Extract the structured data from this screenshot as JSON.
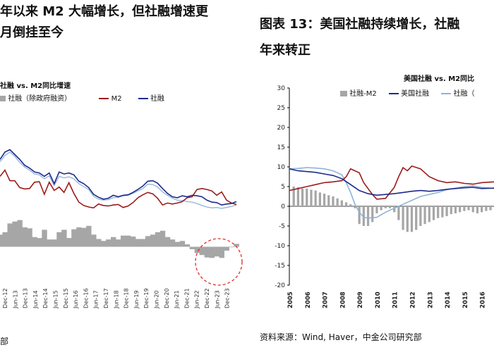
{
  "left": {
    "title_line1": "年以来 M2 大幅增长，但社融增速更",
    "title_line2": "月倒挂至今",
    "subtitle": "社融 vs. M2同比增速",
    "legend": [
      {
        "label": "社融（除政府融资）",
        "color": "#a6a6a6",
        "kind": "bar"
      },
      {
        "label": "M2",
        "color": "#9b1c1c",
        "kind": "line"
      },
      {
        "label": "社融",
        "color": "#1e2a8a",
        "kind": "line"
      }
    ],
    "source": "部",
    "chart_data": {
      "type": "line",
      "x_ticks": [
        "Dec-12",
        "Jun-13",
        "Dec-13",
        "Jun-14",
        "Dec-14",
        "Jun-15",
        "Dec-15",
        "Jun-16",
        "Dec-16",
        "Jun-17",
        "Dec-17",
        "Jun-18",
        "Dec-18",
        "Jun-19",
        "Dec-19",
        "Jun-20",
        "Dec-20",
        "Jun-21",
        "Dec-21",
        "Jun-22",
        "Dec-22",
        "Jun-23",
        "Dec-23"
      ],
      "series": [
        {
          "name": "M2",
          "color": "#9b1c1c",
          "values": [
            14.5,
            15.8,
            13.6,
            13.6,
            12.2,
            11.9,
            12.0,
            13.3,
            13.4,
            10.8,
            13.3,
            11.6,
            12.3,
            11.2,
            13.2,
            11.0,
            9.2,
            8.5,
            8.2,
            8.0,
            8.8,
            8.5,
            8.4,
            8.6,
            8.7,
            8.1,
            8.4,
            9.1,
            10.1,
            10.7,
            11.2,
            10.9,
            10.0,
            8.6,
            9.0,
            8.8,
            9.0,
            9.3,
            10.1,
            10.3,
            11.8,
            12.0,
            11.8,
            11.5,
            10.6,
            11.3,
            9.6,
            9.0,
            8.7
          ]
        },
        {
          "name": "社融",
          "color": "#1e2a8a",
          "values": [
            18.0,
            19.5,
            20.0,
            19.0,
            18.0,
            16.8,
            16.2,
            15.4,
            15.2,
            14.5,
            15.2,
            13.0,
            15.4,
            15.0,
            15.2,
            14.8,
            13.5,
            13.0,
            12.2,
            10.8,
            10.2,
            9.8,
            10.0,
            10.6,
            10.3,
            10.6,
            10.7,
            11.2,
            11.8,
            12.5,
            13.5,
            13.6,
            13.1,
            12.0,
            11.0,
            10.3,
            10.1,
            10.5,
            10.3,
            10.6,
            10.5,
            10.3,
            9.6,
            9.2,
            9.1,
            8.6,
            8.8,
            8.9,
            9.3
          ]
        },
        {
          "name": "社融（除政府融资）",
          "color": "#8fb3d9",
          "values": [
            17.5,
            18.8,
            19.5,
            18.6,
            17.4,
            16.4,
            15.8,
            15.0,
            14.8,
            14.0,
            14.6,
            12.6,
            14.5,
            14.2,
            14.4,
            14.0,
            13.0,
            12.4,
            11.8,
            10.4,
            9.8,
            9.6,
            9.7,
            10.1,
            10.2,
            10.5,
            10.6,
            11.0,
            11.5,
            12.0,
            12.9,
            12.8,
            12.3,
            11.3,
            10.6,
            10.0,
            9.6,
            9.5,
            9.3,
            9.2,
            8.9,
            8.5,
            8.2,
            8.0,
            8.1,
            7.9,
            8.1,
            8.3,
            8.6
          ]
        }
      ],
      "bars": {
        "name": "社融（除政府融资）",
        "values": [
          2.5,
          3.0,
          4.8,
          5.2,
          5.5,
          4.0,
          3.8,
          2.0,
          1.8,
          3.5,
          1.5,
          1.5,
          3.0,
          3.5,
          1.8,
          3.6,
          4.0,
          3.9,
          4.3,
          2.5,
          1.6,
          1.2,
          1.5,
          2.0,
          1.5,
          2.3,
          2.3,
          2.1,
          1.6,
          1.6,
          2.2,
          2.5,
          3.0,
          3.3,
          2.0,
          1.5,
          1.0,
          1.2,
          0.5,
          -0.5,
          -1.3,
          -1.7,
          -2.2,
          -2.3,
          -2.0,
          -2.3,
          -0.8,
          -0.1,
          0.6
        ]
      },
      "ylim": [
        -5,
        24
      ]
    }
  },
  "right": {
    "title_line1": "图表 13：美国社融持续增长，社融",
    "title_line2": "年来转正",
    "subtitle": "美国社融 vs. M2同比",
    "legend": [
      {
        "label": "社融-M2",
        "color": "#a6a6a6",
        "kind": "bar"
      },
      {
        "label": "美国社融",
        "color": "#1e2a8a",
        "kind": "line"
      },
      {
        "label": "社融（",
        "color": "#8fb3d9",
        "kind": "line"
      }
    ],
    "source": "资料来源：Wind, Haver，中金公司研究部",
    "chart_data": {
      "type": "line",
      "x_ticks": [
        "2005",
        "2006",
        "2007",
        "2008",
        "2009",
        "2010",
        "2011",
        "2012",
        "2013",
        "2014",
        "2015",
        "2016"
      ],
      "y_ticks": [
        30,
        25,
        20,
        15,
        10,
        5,
        0,
        -5,
        -10,
        -15,
        -20
      ],
      "ylim": [
        -20,
        30
      ],
      "xlim": [
        2005,
        2016.7
      ],
      "series": [
        {
          "name": "M2",
          "color": "#9b1c1c",
          "x": [
            2005,
            2005.5,
            2006,
            2006.5,
            2007,
            2007.5,
            2008,
            2008.25,
            2008.5,
            2008.75,
            2009,
            2009.25,
            2009.5,
            2009.75,
            2010,
            2010.5,
            2011,
            2011.25,
            2011.5,
            2011.75,
            2012,
            2012.5,
            2013,
            2013.5,
            2014,
            2014.5,
            2015,
            2015.5,
            2016,
            2016.7
          ],
          "values": [
            4.0,
            4.5,
            5.0,
            5.5,
            6.0,
            6.2,
            6.5,
            7.5,
            9.5,
            9.0,
            8.5,
            6.0,
            4.5,
            3.0,
            1.8,
            2.0,
            4.8,
            7.5,
            9.8,
            9.0,
            10.2,
            9.5,
            7.5,
            6.5,
            6.0,
            6.2,
            5.8,
            5.6,
            6.0,
            6.2
          ]
        },
        {
          "name": "美国社融",
          "color": "#1e2a8a",
          "x": [
            2005,
            2005.5,
            2006,
            2006.5,
            2007,
            2007.5,
            2008,
            2008.5,
            2009,
            2009.5,
            2010,
            2010.5,
            2011,
            2011.5,
            2012,
            2012.5,
            2013,
            2013.5,
            2014,
            2014.5,
            2015,
            2015.5,
            2016,
            2016.7
          ],
          "values": [
            9.5,
            9.0,
            8.8,
            8.6,
            8.2,
            7.8,
            7.0,
            5.5,
            4.0,
            3.2,
            2.8,
            3.0,
            3.2,
            3.5,
            3.8,
            4.0,
            3.8,
            4.0,
            4.3,
            4.5,
            4.7,
            4.8,
            4.5,
            4.6
          ]
        },
        {
          "name": "社融（",
          "color": "#8fb3d9",
          "x": [
            2005,
            2005.5,
            2006,
            2006.5,
            2007,
            2007.5,
            2008,
            2008.25,
            2008.5,
            2008.75,
            2009,
            2009.25,
            2009.5,
            2010,
            2010.5,
            2011,
            2011.5,
            2012,
            2012.5,
            2013,
            2013.5,
            2014,
            2014.5,
            2015,
            2015.5,
            2016,
            2016.7
          ],
          "values": [
            9.5,
            9.6,
            9.8,
            9.7,
            9.5,
            9.0,
            8.0,
            6.0,
            3.5,
            0.5,
            -1.5,
            -2.8,
            -3.0,
            -2.8,
            -1.5,
            -0.5,
            0.5,
            1.5,
            2.5,
            3.0,
            3.5,
            4.2,
            4.6,
            5.0,
            5.2,
            4.8,
            4.5
          ]
        }
      ],
      "bars": {
        "name": "社融-M2",
        "x": [
          2005.25,
          2005.5,
          2005.75,
          2006,
          2006.25,
          2006.5,
          2006.75,
          2007,
          2007.25,
          2007.5,
          2007.75,
          2008,
          2008.25,
          2008.5,
          2008.75,
          2009,
          2009.25,
          2009.5,
          2009.75,
          2010,
          2010.25,
          2010.5,
          2010.75,
          2011,
          2011.25,
          2011.5,
          2011.75,
          2012,
          2012.25,
          2012.5,
          2012.75,
          2013,
          2013.25,
          2013.5,
          2013.75,
          2014,
          2014.25,
          2014.5,
          2014.75,
          2015,
          2015.25,
          2015.5,
          2015.75,
          2016,
          2016.25,
          2016.5
        ],
        "values": [
          5.0,
          4.8,
          4.5,
          4.5,
          4.2,
          4.0,
          3.5,
          3.2,
          2.8,
          2.5,
          2.0,
          1.5,
          1.0,
          0.5,
          -0.5,
          -4.5,
          -5.0,
          -5.0,
          -4.0,
          -1.8,
          -1.0,
          -0.5,
          -0.5,
          -1.5,
          -3.5,
          -6.0,
          -6.5,
          -6.5,
          -6.0,
          -5.0,
          -4.5,
          -4.0,
          -3.5,
          -3.0,
          -2.8,
          -2.5,
          -2.0,
          -1.8,
          -1.5,
          -1.2,
          -1.0,
          -1.5,
          -1.8,
          -1.5,
          -1.2,
          -1.0
        ]
      }
    }
  }
}
